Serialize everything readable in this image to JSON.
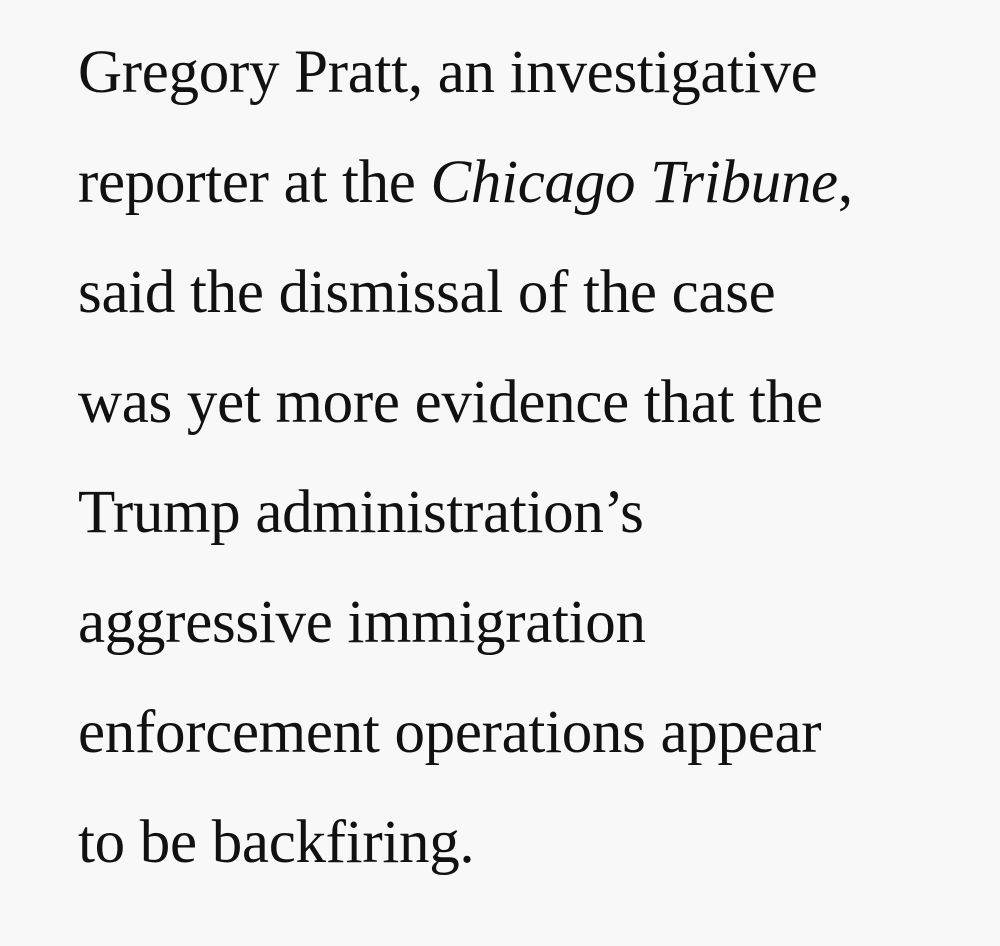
{
  "article": {
    "lines": [
      {
        "a": "Gregory Pratt, an investigative"
      },
      {
        "a": "reporter at the ",
        "i": "Chicago Tribune",
        "b": ","
      },
      {
        "a": "said the dismissal of the case"
      },
      {
        "a": "was yet more evidence that the"
      },
      {
        "a": "Trump administration’s"
      },
      {
        "a": "aggressive immigration"
      },
      {
        "a": "enforcement operations appear"
      },
      {
        "a": "to be backfiring."
      }
    ]
  },
  "colors": {
    "background": "#f8f8f8",
    "text": "#111111"
  }
}
